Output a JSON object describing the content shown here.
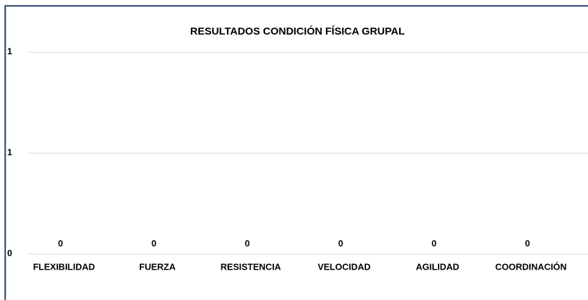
{
  "chart_data": {
    "type": "bar",
    "title": "RESULTADOS CONDICIÓN FÍSICA GRUPAL",
    "categories": [
      "FLEXIBILIDAD",
      "FUERZA",
      "RESISTENCIA",
      "VELOCIDAD",
      "AGILIDAD",
      "COORDINACIÓN"
    ],
    "values": [
      0,
      0,
      0,
      0,
      0,
      0
    ],
    "color": "#4472c4",
    "ylim": [
      0,
      1
    ],
    "yticks": [
      0,
      {
        "value": 0.5,
        "label": "1"
      },
      1
    ],
    "grid": true
  }
}
